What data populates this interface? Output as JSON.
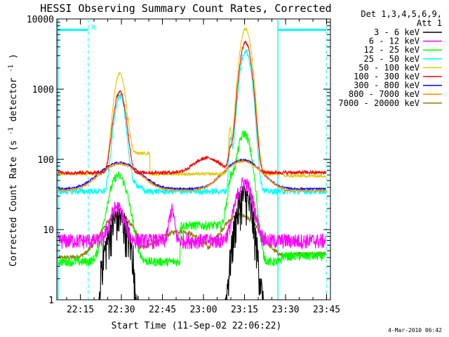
{
  "chart_data": {
    "type": "line",
    "title": "HESSI Observing Summary Count Rates, Corrected",
    "xlabel": "Start Time (11-Sep-02 22:06:22)",
    "ylabel": "Corrected Count Rate (s⁻¹ detector⁻¹)",
    "ylabel_main": "Corrected Count Rate (s",
    "ylabel_sup1": "-1",
    "ylabel_mid": " detector",
    "ylabel_sup2": "-1",
    "ylabel_end": ")",
    "yscale": "log",
    "xlim_minutes": [
      0,
      100
    ],
    "ylim": [
      1,
      10000
    ],
    "x_ticks": [
      {
        "label": "22:15",
        "min": 8.6
      },
      {
        "label": "22:30",
        "min": 23.6
      },
      {
        "label": "22:45",
        "min": 38.6
      },
      {
        "label": "23:00",
        "min": 53.6
      },
      {
        "label": "23:15",
        "min": 68.6
      },
      {
        "label": "23:30",
        "min": 83.6
      },
      {
        "label": "23:45",
        "min": 98.6
      }
    ],
    "y_ticks": [
      {
        "label": "1",
        "v": 1
      },
      {
        "label": "10",
        "v": 10
      },
      {
        "label": "100",
        "v": 100
      },
      {
        "label": "1000",
        "v": 1000
      },
      {
        "label": "10000",
        "v": 10000
      }
    ],
    "legend_header": [
      "Det 1,3,4,5,6,9,",
      "Att 1"
    ],
    "legend_position": "right",
    "series": [
      {
        "name": "3 - 6 keV",
        "color": "#000000",
        "kind": "low"
      },
      {
        "name": "6 - 12 keV",
        "color": "#ff00ff",
        "kind": "mid"
      },
      {
        "name": "12 - 25 keV",
        "color": "#00ff00",
        "kind": "green"
      },
      {
        "name": "25 - 50 keV",
        "color": "#00ffff",
        "kind": "cyan"
      },
      {
        "name": "50 - 100 keV",
        "color": "#e6c800",
        "kind": "yellow"
      },
      {
        "name": "100 - 300 keV",
        "color": "#ff0000",
        "kind": "red"
      },
      {
        "name": "300 - 800 keV",
        "color": "#0000ff",
        "kind": "blue"
      },
      {
        "name": "800 - 7000 keV",
        "color": "#ff8c00",
        "kind": "orange"
      },
      {
        "name": "7000 - 20000 keV",
        "color": "#8b8000",
        "kind": "olive"
      }
    ],
    "flag_labels": [
      "N"
    ],
    "footer_timestamp": "4-Mar-2010 06:42"
  }
}
